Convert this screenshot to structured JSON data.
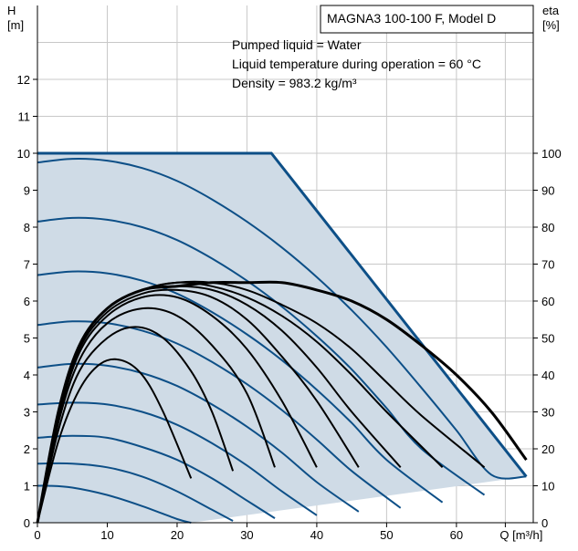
{
  "chart_data": {
    "type": "line",
    "title": "MAGNA3 100-100 F, Model D",
    "annotations": [
      "Pumped liquid = Water",
      "Liquid temperature during operation = 60 °C",
      "Density = 983.2 kg/m³"
    ],
    "xlabel": "Q [m³/h]",
    "ylabel_left_name": "H",
    "ylabel_left_unit": "[m]",
    "ylabel_right_name": "eta",
    "ylabel_right_unit": "[%]",
    "xlim": [
      0,
      71
    ],
    "ylim_left": [
      0,
      14
    ],
    "ylim_right": [
      0,
      140
    ],
    "x_ticks": [
      0,
      10,
      20,
      30,
      40,
      50,
      60
    ],
    "x_end_label": "Q [m³/h]",
    "y_left_ticks": [
      0,
      1,
      2,
      3,
      4,
      5,
      6,
      7,
      8,
      9,
      10,
      11,
      12
    ],
    "y_right_ticks": [
      0,
      10,
      20,
      30,
      40,
      50,
      60,
      70,
      80,
      90,
      100
    ],
    "grid": true,
    "colors": {
      "envelope_fill": "#cfdbe6",
      "envelope_edge": "#0d4f87",
      "head_curves": "#0d4f87",
      "efficiency_curves": "#000000"
    },
    "envelope": {
      "x": [
        0,
        33.5,
        70,
        22,
        0
      ],
      "y": [
        10.0,
        10.0,
        1.25,
        0.0,
        0.0
      ]
    },
    "head_curves": [
      {
        "x": [
          0,
          1.5,
          5,
          10,
          15,
          20,
          22
        ],
        "y": [
          1.0,
          1.0,
          0.95,
          0.75,
          0.45,
          0.1,
          0.0
        ]
      },
      {
        "x": [
          0,
          5,
          10,
          15,
          20,
          25,
          28
        ],
        "y": [
          1.6,
          1.6,
          1.5,
          1.25,
          0.85,
          0.35,
          0.05
        ]
      },
      {
        "x": [
          0,
          5,
          10,
          15,
          20,
          25,
          30,
          34
        ],
        "y": [
          2.3,
          2.35,
          2.3,
          2.05,
          1.7,
          1.2,
          0.6,
          0.12
        ]
      },
      {
        "x": [
          0,
          5,
          10,
          15,
          20,
          25,
          30,
          35,
          40
        ],
        "y": [
          3.2,
          3.25,
          3.2,
          3.0,
          2.65,
          2.15,
          1.55,
          0.85,
          0.2
        ]
      },
      {
        "x": [
          0,
          5,
          10,
          15,
          20,
          25,
          30,
          35,
          40,
          46
        ],
        "y": [
          4.2,
          4.3,
          4.25,
          4.05,
          3.7,
          3.2,
          2.6,
          1.9,
          1.1,
          0.3
        ]
      },
      {
        "x": [
          0,
          5,
          10,
          15,
          20,
          25,
          30,
          35,
          40,
          45,
          52
        ],
        "y": [
          5.35,
          5.45,
          5.4,
          5.2,
          4.85,
          4.35,
          3.75,
          3.05,
          2.25,
          1.4,
          0.4
        ]
      },
      {
        "x": [
          0,
          5,
          10,
          15,
          20,
          25,
          30,
          35,
          40,
          45,
          50,
          58
        ],
        "y": [
          6.7,
          6.8,
          6.75,
          6.55,
          6.2,
          5.7,
          5.1,
          4.4,
          3.6,
          2.7,
          1.7,
          0.55
        ]
      },
      {
        "x": [
          0,
          5,
          10,
          15,
          20,
          25,
          30,
          35,
          40,
          45,
          50,
          55,
          64
        ],
        "y": [
          8.15,
          8.25,
          8.2,
          8.0,
          7.65,
          7.15,
          6.55,
          5.85,
          5.05,
          4.15,
          3.1,
          2.0,
          0.75
        ]
      },
      {
        "x": [
          0,
          5,
          10,
          15,
          20,
          25,
          30,
          35,
          40,
          45,
          50,
          55,
          60,
          65,
          70
        ],
        "y": [
          9.75,
          9.85,
          9.8,
          9.6,
          9.25,
          8.75,
          8.15,
          7.45,
          6.65,
          5.75,
          4.75,
          3.65,
          2.5,
          1.3,
          1.25
        ]
      }
    ],
    "efficiency_curves": [
      {
        "x": [
          0,
          3,
          6,
          9,
          12,
          15,
          18,
          22
        ],
        "y": [
          0,
          22,
          36,
          43,
          44,
          40,
          30,
          12
        ]
      },
      {
        "x": [
          0,
          3,
          6,
          10,
          14,
          18,
          22,
          25,
          28
        ],
        "y": [
          0,
          25,
          41,
          50,
          53,
          50,
          41,
          30,
          14
        ]
      },
      {
        "x": [
          0,
          3,
          6,
          10,
          15,
          20,
          25,
          30,
          34
        ],
        "y": [
          0,
          27,
          44,
          54,
          58,
          56,
          48,
          35,
          15
        ]
      },
      {
        "x": [
          0,
          3,
          6,
          10,
          15,
          20,
          25,
          30,
          35,
          40
        ],
        "y": [
          0,
          28,
          46,
          56,
          61,
          61,
          56,
          47,
          33,
          15
        ]
      },
      {
        "x": [
          0,
          3,
          6,
          10,
          15,
          20,
          25,
          30,
          35,
          40,
          46
        ],
        "y": [
          0,
          29,
          47,
          57,
          62,
          63,
          61,
          55,
          45,
          33,
          15
        ]
      },
      {
        "x": [
          0,
          3,
          6,
          10,
          15,
          20,
          25,
          30,
          35,
          40,
          45,
          52
        ],
        "y": [
          0,
          29,
          48,
          58,
          63,
          64,
          63,
          59,
          52,
          42,
          30,
          15
        ]
      },
      {
        "x": [
          0,
          3,
          6,
          10,
          15,
          20,
          25,
          30,
          35,
          40,
          45,
          50,
          58
        ],
        "y": [
          0,
          30,
          48,
          58,
          63,
          65,
          64,
          61,
          56,
          49,
          40,
          30,
          15
        ]
      },
      {
        "x": [
          0,
          3,
          6,
          10,
          15,
          20,
          25,
          30,
          35,
          40,
          45,
          50,
          55,
          64
        ],
        "y": [
          0,
          30,
          48,
          58,
          63,
          65,
          65,
          63,
          59,
          54,
          47,
          38,
          29,
          15
        ]
      },
      {
        "x": [
          0,
          3,
          6,
          10,
          15,
          20,
          25,
          30,
          35,
          40,
          45,
          50,
          55,
          60,
          65,
          70
        ],
        "y": [
          0,
          30,
          48,
          58,
          63,
          64,
          65,
          65,
          65,
          63,
          60,
          55,
          48,
          40,
          30,
          17
        ]
      }
    ]
  }
}
